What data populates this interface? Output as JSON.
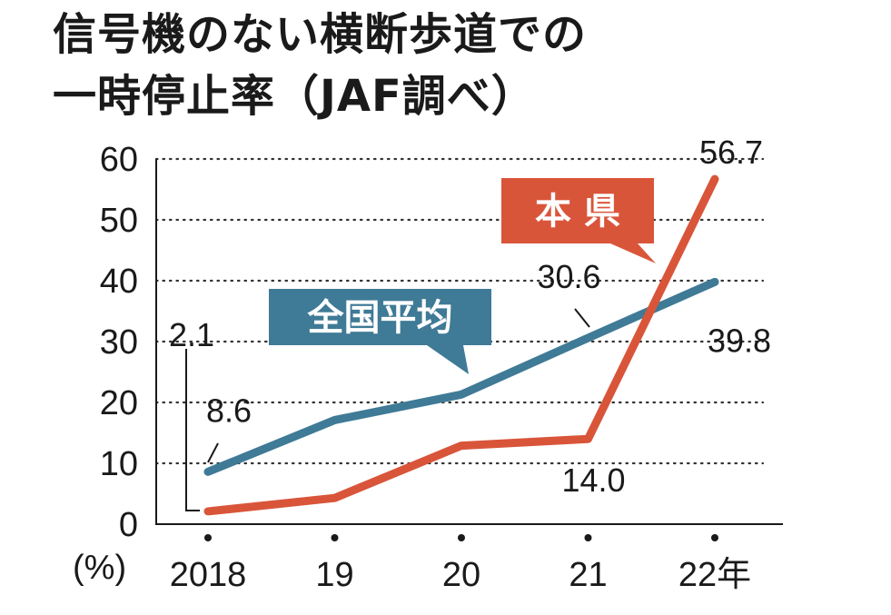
{
  "title_lines": [
    "信号機のない横断歩道での",
    "一時停止率（JAF調べ）"
  ],
  "chart_data": {
    "type": "line",
    "title": "信号機のない横断歩道での一時停止率（JAF調べ）",
    "x": [
      "2018",
      "19",
      "20",
      "21",
      "22年"
    ],
    "ylabel": "(%)",
    "ylim": [
      0,
      60
    ],
    "yticks": [
      0,
      10,
      20,
      30,
      40,
      50,
      60
    ],
    "grid": "horizontal dotted",
    "series": [
      {
        "name": "全国平均",
        "color": "#3f7a96",
        "values": [
          8.6,
          17.1,
          21.3,
          30.6,
          39.8
        ]
      },
      {
        "name": "本県",
        "color": "#d9553a",
        "values": [
          2.1,
          4.3,
          12.9,
          14.0,
          56.7
        ]
      }
    ],
    "data_labels": [
      {
        "series": "全国平均",
        "index": 0,
        "text": "8.6"
      },
      {
        "series": "全国平均",
        "index": 3,
        "text": "30.6"
      },
      {
        "series": "全国平均",
        "index": 4,
        "text": "39.8"
      },
      {
        "series": "本県",
        "index": 0,
        "text": "2.1"
      },
      {
        "series": "本県",
        "index": 3,
        "text": "14.0"
      },
      {
        "series": "本県",
        "index": 4,
        "text": "56.7"
      }
    ]
  }
}
